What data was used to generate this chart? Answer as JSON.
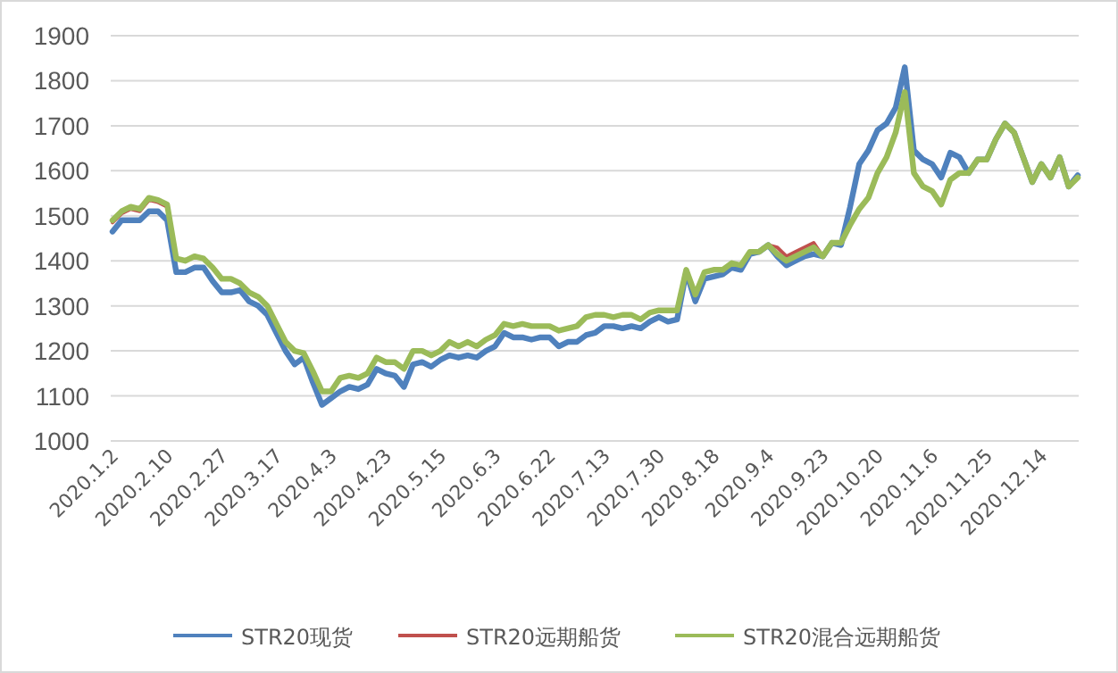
{
  "chart_data": {
    "type": "line",
    "categories": [
      "2020.1.2",
      null,
      null,
      null,
      null,
      null,
      "2020.2.10",
      null,
      null,
      null,
      null,
      null,
      "2020.2.27",
      null,
      null,
      null,
      null,
      null,
      "2020.3.17",
      null,
      null,
      null,
      null,
      null,
      "2020.4.3",
      null,
      null,
      null,
      null,
      null,
      "2020.4.23",
      null,
      null,
      null,
      null,
      null,
      "2020.5.15",
      null,
      null,
      null,
      null,
      null,
      "2020.6.3",
      null,
      null,
      null,
      null,
      null,
      "2020.6.22",
      null,
      null,
      null,
      null,
      null,
      "2020.7.13",
      null,
      null,
      null,
      null,
      null,
      "2020.7.30",
      null,
      null,
      null,
      null,
      null,
      "2020.8.18",
      null,
      null,
      null,
      null,
      null,
      "2020.9.4",
      null,
      null,
      null,
      null,
      null,
      "2020.9.23",
      null,
      null,
      null,
      null,
      null,
      "2020.10.20",
      null,
      null,
      null,
      null,
      null,
      "2020.11.6",
      null,
      null,
      null,
      null,
      null,
      "2020.11.25",
      null,
      null,
      null,
      null,
      null,
      "2020.12.14",
      null,
      null,
      null,
      null
    ],
    "series": [
      {
        "name": "STR20现货",
        "color": "#4f81bd",
        "values": [
          1465,
          1490,
          1490,
          1490,
          1510,
          1510,
          1490,
          1375,
          1375,
          1385,
          1385,
          1355,
          1330,
          1330,
          1335,
          1310,
          1300,
          1280,
          1240,
          1200,
          1170,
          1185,
          1130,
          1080,
          1095,
          1110,
          1120,
          1115,
          1125,
          1160,
          1150,
          1145,
          1120,
          1170,
          1175,
          1165,
          1180,
          1190,
          1185,
          1190,
          1185,
          1200,
          1210,
          1240,
          1230,
          1230,
          1225,
          1230,
          1230,
          1210,
          1220,
          1220,
          1235,
          1240,
          1255,
          1255,
          1250,
          1255,
          1250,
          1265,
          1275,
          1265,
          1270,
          1375,
          1310,
          1360,
          1365,
          1370,
          1385,
          1380,
          1415,
          1420,
          1435,
          1410,
          1390,
          1400,
          1410,
          1415,
          1410,
          1440,
          1435,
          1520,
          1615,
          1645,
          1690,
          1705,
          1740,
          1830,
          1645,
          1625,
          1615,
          1585,
          1640,
          1630,
          1595,
          1625,
          1625,
          1670,
          1705,
          1685,
          1630,
          1575,
          1615,
          1585,
          1630,
          1565,
          1590
        ]
      },
      {
        "name": "STR20远期船货",
        "color": "#c0504d",
        "values": [
          1485,
          1505,
          1515,
          1510,
          1535,
          1530,
          1520,
          1405,
          null,
          null,
          null,
          null,
          null,
          null,
          null,
          null,
          null,
          null,
          null,
          null,
          null,
          null,
          null,
          null,
          null,
          null,
          null,
          null,
          null,
          null,
          null,
          null,
          null,
          null,
          null,
          null,
          null,
          null,
          null,
          null,
          null,
          null,
          null,
          null,
          null,
          null,
          null,
          null,
          null,
          null,
          null,
          null,
          null,
          null,
          null,
          null,
          null,
          null,
          null,
          null,
          null,
          null,
          null,
          null,
          null,
          null,
          null,
          null,
          null,
          null,
          null,
          null,
          1435,
          1430,
          1410,
          1420,
          1430,
          1440,
          1410,
          null,
          null,
          null,
          null,
          null,
          null,
          null,
          null,
          null,
          null,
          null,
          null,
          null,
          null,
          null,
          null,
          null,
          null,
          null,
          null,
          null,
          null,
          null,
          null,
          null,
          null,
          null,
          null
        ]
      },
      {
        "name": "STR20混合远期船货",
        "color": "#9bbb59",
        "values": [
          1490,
          1510,
          1520,
          1515,
          1540,
          1535,
          1525,
          1405,
          1400,
          1410,
          1405,
          1385,
          1360,
          1360,
          1350,
          1330,
          1320,
          1300,
          1260,
          1220,
          1200,
          1195,
          1155,
          1110,
          1110,
          1140,
          1145,
          1140,
          1150,
          1185,
          1175,
          1175,
          1160,
          1200,
          1200,
          1190,
          1200,
          1220,
          1210,
          1220,
          1210,
          1225,
          1235,
          1260,
          1255,
          1260,
          1255,
          1255,
          1255,
          1245,
          1250,
          1255,
          1275,
          1280,
          1280,
          1275,
          1280,
          1280,
          1270,
          1285,
          1290,
          1290,
          1290,
          1380,
          1325,
          1375,
          1380,
          1380,
          1395,
          1390,
          1420,
          1420,
          1435,
          1415,
          1400,
          1410,
          1420,
          1430,
          1410,
          1440,
          1440,
          1480,
          1515,
          1540,
          1595,
          1630,
          1685,
          1775,
          1595,
          1565,
          1555,
          1525,
          1580,
          1595,
          1595,
          1625,
          1625,
          1670,
          1705,
          1685,
          1630,
          1575,
          1615,
          1585,
          1630,
          1565,
          1585
        ]
      }
    ],
    "ylim": [
      1000,
      1900
    ],
    "yticks": [
      1000,
      1100,
      1200,
      1300,
      1400,
      1500,
      1600,
      1700,
      1800,
      1900
    ],
    "grid": "y",
    "legend": "bottom"
  }
}
